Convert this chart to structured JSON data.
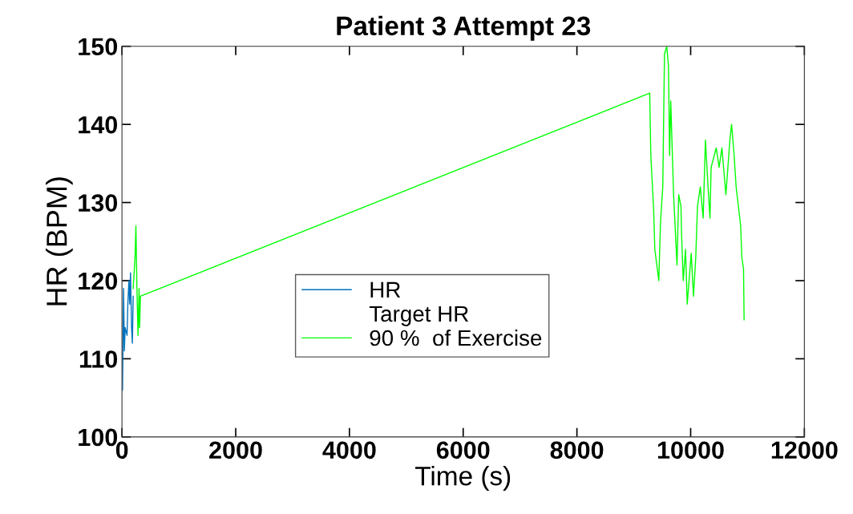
{
  "chart_data": {
    "type": "line",
    "title": "Patient 3 Attempt 23",
    "xlabel": "Time (s)",
    "ylabel": "HR (BPM)",
    "xlim": [
      0,
      12000
    ],
    "xticks": [
      0,
      2000,
      4000,
      6000,
      8000,
      10000,
      12000
    ],
    "ylim": [
      100,
      150
    ],
    "yticks": [
      100,
      110,
      120,
      130,
      140,
      150
    ],
    "grid": false,
    "legend": "center",
    "marker": "none",
    "series": [
      {
        "name": "HR",
        "color": "#0072bd",
        "x": [
          10,
          28,
          42,
          56,
          89,
          103,
          122,
          136,
          150,
          169,
          183,
          197
        ],
        "values": [
          106,
          119,
          111,
          114,
          113,
          117,
          120,
          117,
          121,
          114,
          112,
          118
        ]
      },
      {
        "name": "Target HR"
      },
      {
        "name": "90 %  of Exercise",
        "color": "#00ff00",
        "x": [
          197,
          230,
          245,
          263,
          282,
          301,
          310,
          324,
          9280,
          9300,
          9350,
          9370,
          9440,
          9470,
          9510,
          9540,
          9580,
          9610,
          9630,
          9650,
          9700,
          9760,
          9790,
          9830,
          9840,
          9870,
          9910,
          9940,
          10010,
          10050,
          10090,
          10120,
          10170,
          10220,
          10260,
          10310,
          10340,
          10360,
          10450,
          10500,
          10550,
          10620,
          10690,
          10720,
          10760,
          10800,
          10880,
          10900,
          10930,
          10940
        ],
        "values": [
          119,
          123,
          127,
          119,
          113,
          119,
          114,
          118,
          144,
          136,
          129,
          124,
          120,
          127.5,
          132,
          149,
          150,
          147.5,
          136,
          143,
          131,
          122,
          131,
          129.5,
          126,
          120,
          124,
          117,
          123.5,
          118,
          123,
          129.5,
          132,
          128,
          138,
          131.5,
          128,
          134.5,
          137,
          134.5,
          137,
          131,
          138,
          140,
          136.5,
          132,
          127,
          123,
          121.5,
          115
        ]
      }
    ]
  }
}
